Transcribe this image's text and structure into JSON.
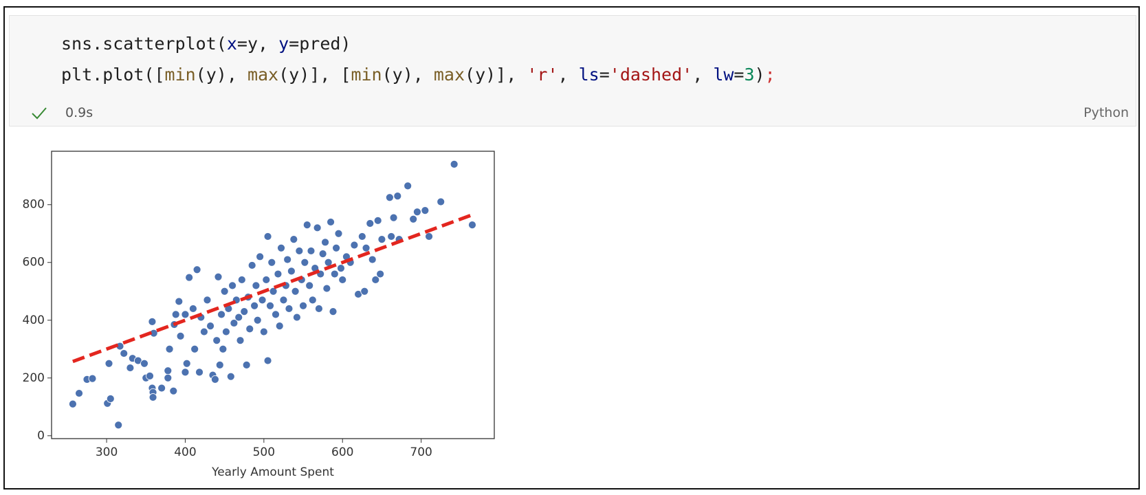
{
  "cell": {
    "code": [
      [
        {
          "text": "sns.scatterplot(",
          "color": "#1f1f1f"
        },
        {
          "text": "x",
          "color": "#001080"
        },
        {
          "text": "=y, ",
          "color": "#1f1f1f"
        },
        {
          "text": "y",
          "color": "#001080"
        },
        {
          "text": "=pred)",
          "color": "#1f1f1f"
        }
      ],
      [
        {
          "text": "plt.plot([",
          "color": "#1f1f1f"
        },
        {
          "text": "min",
          "color": "#795e26"
        },
        {
          "text": "(y), ",
          "color": "#1f1f1f"
        },
        {
          "text": "max",
          "color": "#795e26"
        },
        {
          "text": "(y)], [",
          "color": "#1f1f1f"
        },
        {
          "text": "min",
          "color": "#795e26"
        },
        {
          "text": "(y), ",
          "color": "#1f1f1f"
        },
        {
          "text": "max",
          "color": "#795e26"
        },
        {
          "text": "(y)], ",
          "color": "#1f1f1f"
        },
        {
          "text": "'r'",
          "color": "#a31515"
        },
        {
          "text": ", ",
          "color": "#1f1f1f"
        },
        {
          "text": "ls",
          "color": "#001080"
        },
        {
          "text": "=",
          "color": "#1f1f1f"
        },
        {
          "text": "'dashed'",
          "color": "#a31515"
        },
        {
          "text": ", ",
          "color": "#1f1f1f"
        },
        {
          "text": "lw",
          "color": "#001080"
        },
        {
          "text": "=",
          "color": "#1f1f1f"
        },
        {
          "text": "3",
          "color": "#098658"
        },
        {
          "text": ")",
          "color": "#1f1f1f"
        },
        {
          "text": ";",
          "color": "#cd3131"
        }
      ]
    ],
    "status": "0.9s",
    "language": "Python"
  },
  "chart_data": {
    "type": "scatter",
    "xlabel": "Yearly Amount Spent",
    "xlim": [
      230,
      793
    ],
    "ylim": [
      -10,
      985
    ],
    "xticks": [
      300,
      400,
      500,
      600,
      700
    ],
    "yticks": [
      0,
      200,
      400,
      600,
      800
    ],
    "color": "#4c72b0",
    "x": [
      257,
      265,
      275,
      282,
      301,
      305,
      303,
      315,
      317,
      322,
      330,
      333,
      340,
      348,
      350,
      355,
      358,
      358,
      359,
      359,
      360,
      370,
      378,
      378,
      380,
      385,
      386,
      388,
      392,
      394,
      400,
      400,
      402,
      405,
      410,
      412,
      415,
      418,
      420,
      424,
      428,
      432,
      435,
      438,
      440,
      442,
      444,
      446,
      448,
      450,
      452,
      455,
      458,
      460,
      462,
      465,
      468,
      470,
      472,
      475,
      478,
      480,
      482,
      485,
      488,
      490,
      492,
      495,
      498,
      500,
      503,
      505,
      505,
      508,
      510,
      512,
      515,
      518,
      520,
      522,
      525,
      528,
      530,
      532,
      535,
      538,
      540,
      542,
      545,
      548,
      550,
      552,
      555,
      558,
      560,
      562,
      565,
      568,
      570,
      572,
      575,
      578,
      580,
      582,
      585,
      588,
      590,
      592,
      595,
      598,
      600,
      605,
      610,
      615,
      620,
      625,
      628,
      630,
      635,
      638,
      642,
      645,
      648,
      650,
      660,
      662,
      665,
      670,
      672,
      683,
      690,
      695,
      705,
      710,
      725,
      742,
      765
    ],
    "values": [
      110,
      147,
      195,
      198,
      112,
      128,
      250,
      37,
      310,
      285,
      235,
      268,
      260,
      250,
      200,
      207,
      395,
      165,
      150,
      133,
      355,
      165,
      225,
      200,
      300,
      155,
      385,
      420,
      465,
      345,
      220,
      420,
      250,
      548,
      440,
      300,
      575,
      220,
      410,
      360,
      470,
      380,
      210,
      195,
      330,
      550,
      245,
      420,
      300,
      500,
      360,
      440,
      205,
      520,
      390,
      470,
      410,
      330,
      540,
      430,
      245,
      480,
      370,
      590,
      450,
      520,
      400,
      620,
      470,
      360,
      540,
      260,
      690,
      450,
      600,
      500,
      420,
      560,
      380,
      650,
      470,
      520,
      610,
      440,
      570,
      680,
      500,
      410,
      640,
      540,
      450,
      600,
      730,
      520,
      640,
      470,
      580,
      720,
      440,
      560,
      630,
      670,
      510,
      600,
      740,
      430,
      560,
      650,
      700,
      580,
      540,
      620,
      600,
      660,
      490,
      690,
      500,
      650,
      735,
      610,
      540,
      745,
      560,
      680,
      825,
      690,
      755,
      830,
      680,
      865,
      750,
      775,
      780,
      690,
      810,
      940,
      730
    ],
    "overlay": {
      "type": "line",
      "x": [
        257,
        765
      ],
      "values": [
        257,
        765
      ],
      "color": "#e3261f",
      "style": "dashed"
    }
  }
}
